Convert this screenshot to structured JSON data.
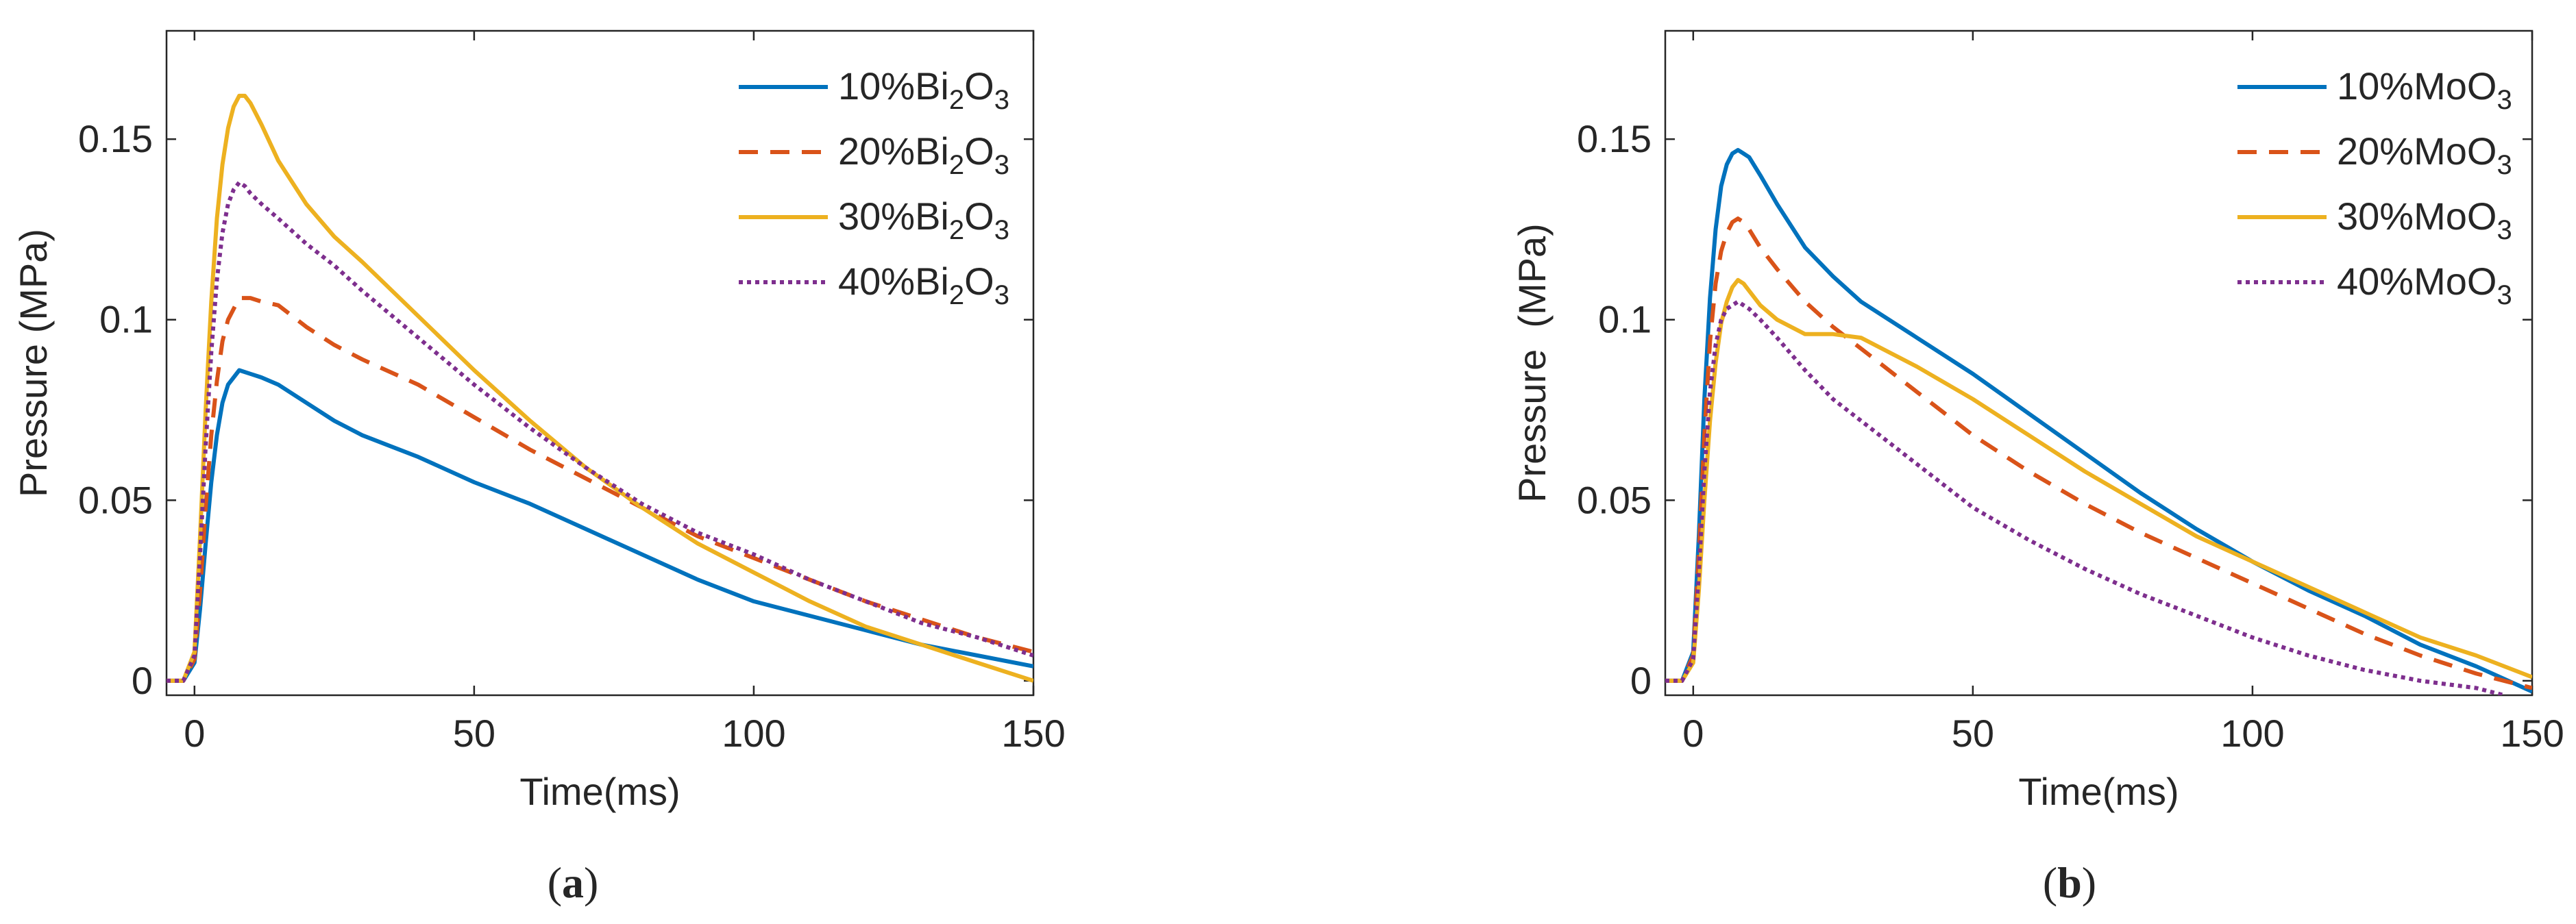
{
  "figure": {
    "panels": [
      {
        "id": "a",
        "caption_open": "(",
        "caption_letter": "a",
        "caption_close": ")"
      },
      {
        "id": "b",
        "caption_open": "(",
        "caption_letter": "b",
        "caption_close": ")"
      }
    ]
  },
  "colors": {
    "s10": "#0072BD",
    "s20": "#D95319",
    "s30": "#EDB120",
    "s40": "#7E2F8E",
    "axis": "#262626"
  },
  "chart_data": [
    {
      "type": "line",
      "panel": "a",
      "title": "",
      "xlabel": "Time(ms)",
      "ylabel": "Pressure (MPa)",
      "xlim": [
        -5,
        150
      ],
      "ylim": [
        -0.004,
        0.18
      ],
      "xticks": [
        0,
        50,
        100,
        150
      ],
      "xtick_labels": [
        "0",
        "50",
        "100",
        "150"
      ],
      "yticks": [
        0,
        0.05,
        0.1,
        0.15
      ],
      "ytick_labels": [
        "0",
        "0.05",
        "0.1",
        "0.15"
      ],
      "legend_position": "top-right",
      "series": [
        {
          "name": "10%Bi2O3",
          "label_prefix": "10%Bi",
          "sub1": "2",
          "mid": "O",
          "sub2": "3",
          "style": "solid",
          "color_key": "s10",
          "x": [
            -5,
            -2,
            0,
            1,
            2,
            3,
            4,
            5,
            6,
            8,
            10,
            12,
            15,
            20,
            25,
            30,
            35,
            40,
            50,
            60,
            70,
            80,
            90,
            100,
            110,
            120,
            130,
            140,
            150
          ],
          "y": [
            0,
            0,
            0.005,
            0.02,
            0.038,
            0.055,
            0.068,
            0.077,
            0.082,
            0.086,
            0.085,
            0.084,
            0.082,
            0.077,
            0.072,
            0.068,
            0.065,
            0.062,
            0.055,
            0.049,
            0.042,
            0.035,
            0.028,
            0.022,
            0.018,
            0.014,
            0.01,
            0.007,
            0.004
          ]
        },
        {
          "name": "20%Bi2O3",
          "label_prefix": "20%Bi",
          "sub1": "2",
          "mid": "O",
          "sub2": "3",
          "style": "dashed",
          "color_key": "s20",
          "x": [
            -5,
            -2,
            0,
            1,
            2,
            3,
            4,
            5,
            6,
            8,
            10,
            12,
            15,
            20,
            25,
            30,
            40,
            50,
            60,
            70,
            80,
            90,
            100,
            110,
            120,
            130,
            140,
            150
          ],
          "y": [
            0,
            0,
            0.006,
            0.025,
            0.048,
            0.068,
            0.083,
            0.094,
            0.1,
            0.106,
            0.106,
            0.105,
            0.104,
            0.098,
            0.093,
            0.089,
            0.082,
            0.073,
            0.064,
            0.056,
            0.048,
            0.04,
            0.034,
            0.028,
            0.022,
            0.017,
            0.012,
            0.008
          ]
        },
        {
          "name": "30%Bi2O3",
          "label_prefix": "30%Bi",
          "sub1": "2",
          "mid": "O",
          "sub2": "3",
          "style": "solid",
          "color_key": "s30",
          "x": [
            -5,
            -2,
            0,
            1,
            2,
            3,
            4,
            5,
            6,
            7,
            8,
            9,
            10,
            12,
            15,
            20,
            25,
            30,
            40,
            50,
            60,
            70,
            80,
            90,
            100,
            110,
            120,
            130,
            140,
            150
          ],
          "y": [
            0,
            0,
            0.008,
            0.04,
            0.075,
            0.105,
            0.128,
            0.143,
            0.153,
            0.159,
            0.162,
            0.162,
            0.16,
            0.154,
            0.144,
            0.132,
            0.123,
            0.116,
            0.101,
            0.086,
            0.072,
            0.059,
            0.048,
            0.038,
            0.03,
            0.022,
            0.015,
            0.01,
            0.005,
            0
          ]
        },
        {
          "name": "40%Bi2O3",
          "label_prefix": "40%Bi",
          "sub1": "2",
          "mid": "O",
          "sub2": "3",
          "style": "dotted",
          "color_key": "s40",
          "x": [
            -5,
            -2,
            0,
            1,
            2,
            3,
            4,
            5,
            6,
            7,
            8,
            9,
            10,
            12,
            15,
            20,
            25,
            30,
            40,
            50,
            60,
            70,
            80,
            90,
            100,
            110,
            120,
            130,
            140,
            150
          ],
          "y": [
            0,
            0,
            0.007,
            0.035,
            0.065,
            0.091,
            0.111,
            0.124,
            0.132,
            0.136,
            0.138,
            0.137,
            0.135,
            0.132,
            0.128,
            0.121,
            0.115,
            0.108,
            0.095,
            0.082,
            0.07,
            0.059,
            0.049,
            0.041,
            0.035,
            0.028,
            0.022,
            0.016,
            0.012,
            0.007
          ]
        }
      ]
    },
    {
      "type": "line",
      "panel": "b",
      "title": "",
      "xlabel": "Time(ms)",
      "ylabel": "Pressure  (MPa)",
      "xlim": [
        -5,
        150
      ],
      "ylim": [
        -0.004,
        0.18
      ],
      "xticks": [
        0,
        50,
        100,
        150
      ],
      "xtick_labels": [
        "0",
        "50",
        "100",
        "150"
      ],
      "yticks": [
        0,
        0.05,
        0.1,
        0.15
      ],
      "ytick_labels": [
        "0",
        "0.05",
        "0.1",
        "0.15"
      ],
      "legend_position": "top-right",
      "series": [
        {
          "name": "10%MoO3",
          "label_prefix": "10%MoO",
          "sub1": "3",
          "mid": "",
          "sub2": "",
          "style": "solid",
          "color_key": "s10",
          "x": [
            -5,
            -2,
            0,
            1,
            2,
            3,
            4,
            5,
            6,
            7,
            8,
            9,
            10,
            12,
            15,
            20,
            25,
            30,
            40,
            50,
            60,
            70,
            80,
            90,
            100,
            110,
            120,
            130,
            140,
            150
          ],
          "y": [
            0,
            0,
            0.008,
            0.04,
            0.078,
            0.106,
            0.125,
            0.137,
            0.143,
            0.146,
            0.147,
            0.146,
            0.145,
            0.14,
            0.132,
            0.12,
            0.112,
            0.105,
            0.095,
            0.085,
            0.074,
            0.063,
            0.052,
            0.042,
            0.033,
            0.025,
            0.018,
            0.01,
            0.004,
            -0.003
          ]
        },
        {
          "name": "20%MoO3",
          "label_prefix": "20%MoO",
          "sub1": "3",
          "mid": "",
          "sub2": "",
          "style": "dashed",
          "color_key": "s20",
          "x": [
            -5,
            -2,
            0,
            1,
            2,
            3,
            4,
            5,
            6,
            7,
            8,
            9,
            10,
            12,
            15,
            20,
            25,
            30,
            40,
            50,
            60,
            70,
            80,
            90,
            100,
            110,
            120,
            130,
            140,
            150
          ],
          "y": [
            0,
            0,
            0.007,
            0.035,
            0.068,
            0.094,
            0.11,
            0.119,
            0.124,
            0.127,
            0.128,
            0.127,
            0.125,
            0.12,
            0.114,
            0.105,
            0.098,
            0.092,
            0.08,
            0.068,
            0.058,
            0.049,
            0.041,
            0.034,
            0.027,
            0.02,
            0.013,
            0.007,
            0.002,
            -0.002
          ]
        },
        {
          "name": "30%MoO3",
          "label_prefix": "30%MoO",
          "sub1": "3",
          "mid": "",
          "sub2": "",
          "style": "solid",
          "color_key": "s30",
          "x": [
            -5,
            -2,
            0,
            1,
            2,
            3,
            4,
            5,
            6,
            7,
            8,
            9,
            10,
            12,
            15,
            20,
            25,
            30,
            40,
            50,
            60,
            70,
            80,
            90,
            100,
            110,
            120,
            130,
            140,
            150
          ],
          "y": [
            0,
            0,
            0.005,
            0.025,
            0.05,
            0.072,
            0.088,
            0.099,
            0.105,
            0.109,
            0.111,
            0.11,
            0.108,
            0.104,
            0.1,
            0.096,
            0.096,
            0.095,
            0.087,
            0.078,
            0.068,
            0.058,
            0.049,
            0.04,
            0.033,
            0.026,
            0.019,
            0.012,
            0.007,
            0.001
          ]
        },
        {
          "name": "40%MoO3",
          "label_prefix": "40%MoO",
          "sub1": "3",
          "mid": "",
          "sub2": "",
          "style": "dotted",
          "color_key": "s40",
          "x": [
            -5,
            -2,
            0,
            1,
            2,
            3,
            4,
            5,
            6,
            7,
            8,
            9,
            10,
            12,
            15,
            20,
            25,
            30,
            40,
            50,
            60,
            70,
            80,
            90,
            100,
            110,
            120,
            130,
            140,
            145
          ],
          "y": [
            0,
            0,
            0.006,
            0.03,
            0.058,
            0.08,
            0.093,
            0.1,
            0.103,
            0.104,
            0.105,
            0.104,
            0.103,
            0.1,
            0.095,
            0.086,
            0.078,
            0.072,
            0.06,
            0.048,
            0.039,
            0.031,
            0.024,
            0.018,
            0.012,
            0.007,
            0.003,
            0,
            -0.002,
            -0.004
          ]
        }
      ]
    }
  ]
}
